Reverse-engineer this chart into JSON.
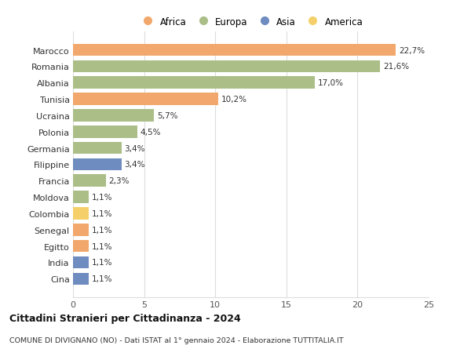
{
  "countries": [
    "Marocco",
    "Romania",
    "Albania",
    "Tunisia",
    "Ucraina",
    "Polonia",
    "Germania",
    "Filippine",
    "Francia",
    "Moldova",
    "Colombia",
    "Senegal",
    "Egitto",
    "India",
    "Cina"
  ],
  "values": [
    22.7,
    21.6,
    17.0,
    10.2,
    5.7,
    4.5,
    3.4,
    3.4,
    2.3,
    1.1,
    1.1,
    1.1,
    1.1,
    1.1,
    1.1
  ],
  "labels": [
    "22,7%",
    "21,6%",
    "17,0%",
    "10,2%",
    "5,7%",
    "4,5%",
    "3,4%",
    "3,4%",
    "2,3%",
    "1,1%",
    "1,1%",
    "1,1%",
    "1,1%",
    "1,1%",
    "1,1%"
  ],
  "colors": [
    "#F2A86C",
    "#ABBE88",
    "#ABBE88",
    "#F2A86C",
    "#ABBE88",
    "#ABBE88",
    "#ABBE88",
    "#6E8CBF",
    "#ABBE88",
    "#ABBE88",
    "#F5D06A",
    "#F2A86C",
    "#F2A86C",
    "#6E8CBF",
    "#6E8CBF"
  ],
  "legend_labels": [
    "Africa",
    "Europa",
    "Asia",
    "America"
  ],
  "legend_colors": [
    "#F2A86C",
    "#ABBE88",
    "#6E8CBF",
    "#F5D06A"
  ],
  "xlim": [
    0,
    25
  ],
  "xticks": [
    0,
    5,
    10,
    15,
    20,
    25
  ],
  "title": "Cittadini Stranieri per Cittadinanza - 2024",
  "subtitle": "COMUNE DI DIVIGNANO (NO) - Dati ISTAT al 1° gennaio 2024 - Elaborazione TUTTITALIA.IT",
  "bg_color": "#ffffff",
  "grid_color": "#dddddd",
  "bar_height": 0.75
}
